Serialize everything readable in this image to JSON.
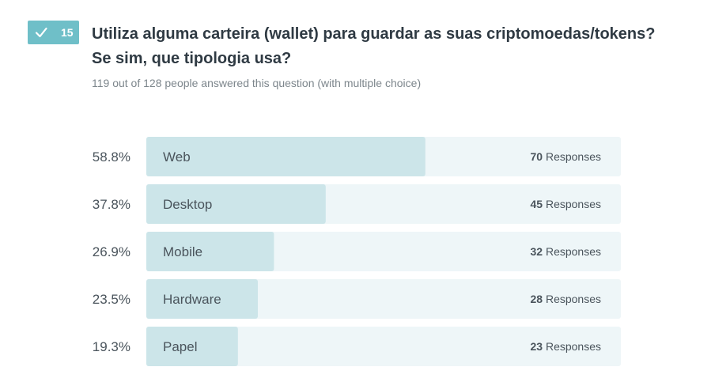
{
  "question": {
    "number": "15",
    "title": "Utiliza alguma carteira (wallet) para guardar as suas criptomoedas/tokens? Se sim, que tipologia usa?",
    "meta": "119 out of 128 people answered this question (with multiple choice)",
    "answered_icon": "check-icon"
  },
  "colors": {
    "badge": "#6fbfc8",
    "bar_fill": "#cce5e9",
    "bar_track": "#eef6f8",
    "text": "#4a545c",
    "title": "#2f3a43",
    "meta": "#7d868c"
  },
  "chart_data": {
    "type": "bar",
    "orientation": "horizontal",
    "categories": [
      "Web",
      "Desktop",
      "Mobile",
      "Hardware",
      "Papel"
    ],
    "percent_labels": [
      "58.8%",
      "37.8%",
      "26.9%",
      "23.5%",
      "19.3%"
    ],
    "percentages": [
      58.8,
      37.8,
      26.9,
      23.5,
      19.3
    ],
    "responses": [
      70,
      45,
      32,
      28,
      23
    ],
    "responses_suffix": "Responses",
    "xlim": [
      0,
      100
    ]
  }
}
